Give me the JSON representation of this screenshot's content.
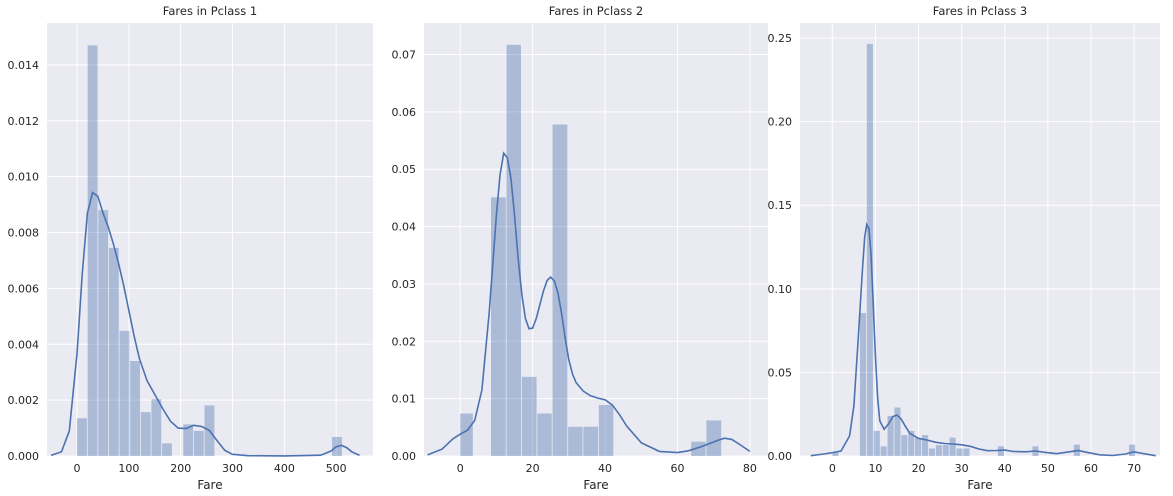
{
  "chart_data": [
    {
      "type": "histogram+kde",
      "title": "Fares in Pclass 1",
      "xlabel": "Fare",
      "ylabel": "",
      "xlim": [
        -58,
        571
      ],
      "ylim": [
        0,
        0.0155
      ],
      "xticks": [
        0,
        100,
        200,
        300,
        400,
        500
      ],
      "yticks": [
        0,
        0.002,
        0.004,
        0.006,
        0.008,
        0.01,
        0.012,
        0.014
      ],
      "ytick_labels": [
        "0.000",
        "0.002",
        "0.004",
        "0.006",
        "0.008",
        "0.010",
        "0.012",
        "0.014"
      ],
      "grid": true,
      "bins": [
        {
          "x0": 0,
          "x1": 20.5,
          "value": 0.00135
        },
        {
          "x0": 20.5,
          "x1": 41,
          "value": 0.0147
        },
        {
          "x0": 41,
          "x1": 61.5,
          "value": 0.0088
        },
        {
          "x0": 61.5,
          "x1": 82,
          "value": 0.00745
        },
        {
          "x0": 82,
          "x1": 102.5,
          "value": 0.00448
        },
        {
          "x0": 102.5,
          "x1": 123,
          "value": 0.0034
        },
        {
          "x0": 123,
          "x1": 143.5,
          "value": 0.00157
        },
        {
          "x0": 143.5,
          "x1": 164,
          "value": 0.00203
        },
        {
          "x0": 164,
          "x1": 184.5,
          "value": 0.00045
        },
        {
          "x0": 205,
          "x1": 225.5,
          "value": 0.00113
        },
        {
          "x0": 225.5,
          "x1": 246,
          "value": 0.0009
        },
        {
          "x0": 246,
          "x1": 266.5,
          "value": 0.00181
        },
        {
          "x0": 492,
          "x1": 512.5,
          "value": 0.00068
        }
      ],
      "kde": {
        "x": [
          -50,
          -30,
          -15,
          0,
          10,
          20,
          30,
          40,
          50,
          60,
          70,
          80,
          90,
          100,
          110,
          120,
          135,
          150,
          165,
          180,
          195,
          210,
          225,
          240,
          255,
          270,
          285,
          300,
          330,
          400,
          470,
          490,
          500,
          510,
          520,
          530,
          545
        ],
        "y": [
          2e-05,
          0.00015,
          0.0009,
          0.0037,
          0.0065,
          0.0087,
          0.00943,
          0.0093,
          0.0087,
          0.0082,
          0.0076,
          0.0069,
          0.0061,
          0.0052,
          0.0043,
          0.0035,
          0.0027,
          0.0022,
          0.0017,
          0.00125,
          0.001,
          0.00098,
          0.0011,
          0.00106,
          0.00092,
          0.00055,
          0.0002,
          6e-05,
          1e-05,
          5e-06,
          3e-05,
          0.00018,
          0.00033,
          0.00038,
          0.0003,
          0.00015,
          2e-05
        ]
      }
    },
    {
      "type": "histogram+kde",
      "title": "Fares in Pclass 2",
      "xlabel": "Fare",
      "ylabel": "",
      "xlim": [
        -10,
        85
      ],
      "ylim": [
        0,
        0.0755
      ],
      "xticks": [
        0,
        20,
        40,
        60,
        80
      ],
      "yticks": [
        0,
        0.01,
        0.02,
        0.03,
        0.04,
        0.05,
        0.06,
        0.07
      ],
      "ytick_labels": [
        "0.00",
        "0.01",
        "0.02",
        "0.03",
        "0.04",
        "0.05",
        "0.06",
        "0.07"
      ],
      "grid": true,
      "bins": [
        {
          "x0": 0,
          "x1": 3.7,
          "value": 0.0074
        },
        {
          "x0": 8.5,
          "x1": 12.8,
          "value": 0.0451
        },
        {
          "x0": 12.8,
          "x1": 17,
          "value": 0.0717
        },
        {
          "x0": 17,
          "x1": 21.3,
          "value": 0.0138
        },
        {
          "x0": 21.3,
          "x1": 25.5,
          "value": 0.0074
        },
        {
          "x0": 25.5,
          "x1": 29.8,
          "value": 0.0578
        },
        {
          "x0": 29.8,
          "x1": 34,
          "value": 0.0051
        },
        {
          "x0": 34,
          "x1": 38.3,
          "value": 0.0051
        },
        {
          "x0": 38.3,
          "x1": 42.5,
          "value": 0.0089
        },
        {
          "x0": 63.8,
          "x1": 68,
          "value": 0.0025
        },
        {
          "x0": 68,
          "x1": 72.3,
          "value": 0.0062
        }
      ],
      "kde": {
        "x": [
          -9,
          -5,
          -2,
          0,
          2,
          4,
          6,
          8,
          10,
          11,
          12,
          13,
          14,
          15,
          16,
          17,
          18,
          19,
          20,
          21,
          22,
          23,
          24,
          25,
          26,
          27,
          28,
          29,
          30,
          31,
          32,
          34,
          36,
          38,
          40,
          42,
          44,
          46,
          50,
          55,
          60,
          63,
          66,
          69,
          71,
          73,
          75,
          77,
          80
        ],
        "y": [
          0.0002,
          0.0012,
          0.003,
          0.0038,
          0.0045,
          0.0062,
          0.0115,
          0.025,
          0.042,
          0.049,
          0.0528,
          0.052,
          0.0485,
          0.042,
          0.0345,
          0.0282,
          0.024,
          0.0222,
          0.0223,
          0.024,
          0.0264,
          0.0288,
          0.0306,
          0.0312,
          0.0305,
          0.0284,
          0.0248,
          0.0205,
          0.0168,
          0.0143,
          0.0128,
          0.0113,
          0.0105,
          0.0101,
          0.0098,
          0.0089,
          0.0072,
          0.0052,
          0.0023,
          0.0008,
          0.0006,
          0.0009,
          0.0015,
          0.0022,
          0.0027,
          0.0031,
          0.0029,
          0.0021,
          0.0008
        ]
      }
    },
    {
      "type": "histogram+kde",
      "title": "Fares in Pclass 3",
      "xlabel": "Fare",
      "ylabel": "",
      "xlim": [
        -7.5,
        76
      ],
      "ylim": [
        0,
        0.259
      ],
      "xticks": [
        0,
        10,
        20,
        30,
        40,
        50,
        60,
        70
      ],
      "yticks": [
        0,
        0.05,
        0.1,
        0.15,
        0.2,
        0.25
      ],
      "ytick_labels": [
        "0.00",
        "0.05",
        "0.10",
        "0.15",
        "0.20",
        "0.25"
      ],
      "grid": true,
      "bins": [
        {
          "x0": 0,
          "x1": 1.6,
          "value": 0.002
        },
        {
          "x0": 6.4,
          "x1": 8.0,
          "value": 0.0855
        },
        {
          "x0": 8.0,
          "x1": 9.6,
          "value": 0.2465
        },
        {
          "x0": 9.6,
          "x1": 11.2,
          "value": 0.015
        },
        {
          "x0": 11.2,
          "x1": 12.8,
          "value": 0.0058
        },
        {
          "x0": 12.8,
          "x1": 14.4,
          "value": 0.024
        },
        {
          "x0": 14.4,
          "x1": 16.0,
          "value": 0.029
        },
        {
          "x0": 16.0,
          "x1": 17.6,
          "value": 0.0125
        },
        {
          "x0": 17.6,
          "x1": 19.2,
          "value": 0.015
        },
        {
          "x0": 19.2,
          "x1": 20.8,
          "value": 0.011
        },
        {
          "x0": 20.8,
          "x1": 22.4,
          "value": 0.0125
        },
        {
          "x0": 22.4,
          "x1": 24.0,
          "value": 0.0045
        },
        {
          "x0": 24.0,
          "x1": 25.6,
          "value": 0.0065
        },
        {
          "x0": 25.6,
          "x1": 27.2,
          "value": 0.0065
        },
        {
          "x0": 27.2,
          "x1": 28.8,
          "value": 0.011
        },
        {
          "x0": 28.8,
          "x1": 30.4,
          "value": 0.0045
        },
        {
          "x0": 30.4,
          "x1": 32.0,
          "value": 0.0045
        },
        {
          "x0": 38.4,
          "x1": 40.0,
          "value": 0.0058
        },
        {
          "x0": 46.4,
          "x1": 48.0,
          "value": 0.0058
        },
        {
          "x0": 56.0,
          "x1": 57.6,
          "value": 0.0068
        },
        {
          "x0": 68.8,
          "x1": 70.4,
          "value": 0.0068
        }
      ],
      "kde": {
        "x": [
          -5,
          -2,
          0,
          2,
          4,
          5,
          6,
          7,
          7.5,
          8,
          8.5,
          9,
          9.5,
          10,
          10.5,
          11,
          12,
          13,
          14,
          15,
          16,
          17,
          18,
          20,
          22,
          24,
          26,
          28,
          30,
          32,
          34,
          36,
          38,
          40,
          42,
          45,
          47,
          49,
          52,
          55,
          57,
          59,
          62,
          65,
          68,
          70,
          72,
          75
        ],
        "y": [
          0.0002,
          0.0012,
          0.002,
          0.003,
          0.012,
          0.03,
          0.07,
          0.112,
          0.131,
          0.1385,
          0.136,
          0.12,
          0.09,
          0.06,
          0.035,
          0.021,
          0.016,
          0.019,
          0.0235,
          0.0245,
          0.022,
          0.0175,
          0.0135,
          0.0105,
          0.0095,
          0.0082,
          0.0075,
          0.0072,
          0.0067,
          0.0058,
          0.0042,
          0.0032,
          0.0033,
          0.0035,
          0.0027,
          0.0025,
          0.003,
          0.0023,
          0.0014,
          0.0025,
          0.0033,
          0.0022,
          0.0007,
          0.0003,
          0.0012,
          0.0025,
          0.0015,
          0.0002
        ]
      }
    }
  ]
}
